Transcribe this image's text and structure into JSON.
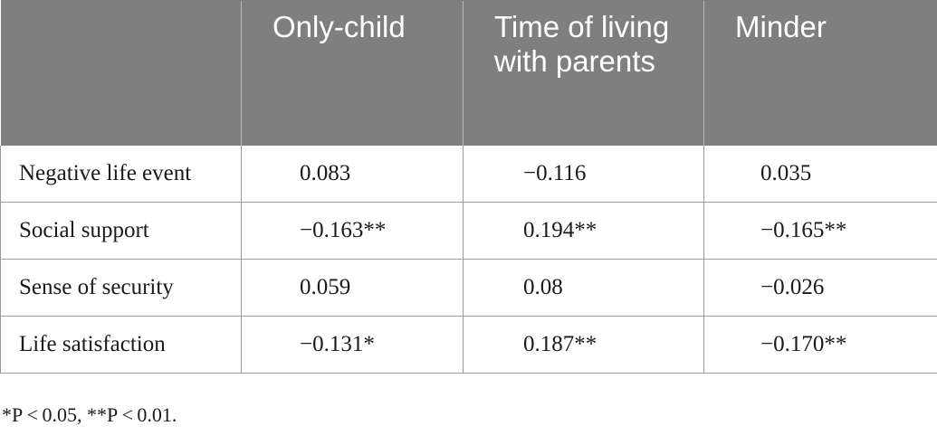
{
  "table": {
    "headers": [
      "",
      "Only-child",
      "Time of living with parents",
      "Minder"
    ],
    "rows": [
      {
        "label": "Negative life event",
        "values": [
          "0.083",
          "−0.116",
          "0.035"
        ]
      },
      {
        "label": "Social support",
        "values": [
          "−0.163**",
          "0.194**",
          "−0.165**"
        ]
      },
      {
        "label": "Sense of security",
        "values": [
          "0.059",
          "0.08",
          "−0.026"
        ]
      },
      {
        "label": "Life satisfaction",
        "values": [
          "−0.131*",
          "0.187**",
          "−0.170**"
        ]
      }
    ]
  },
  "footnote": "*P < 0.05, **P < 0.01."
}
